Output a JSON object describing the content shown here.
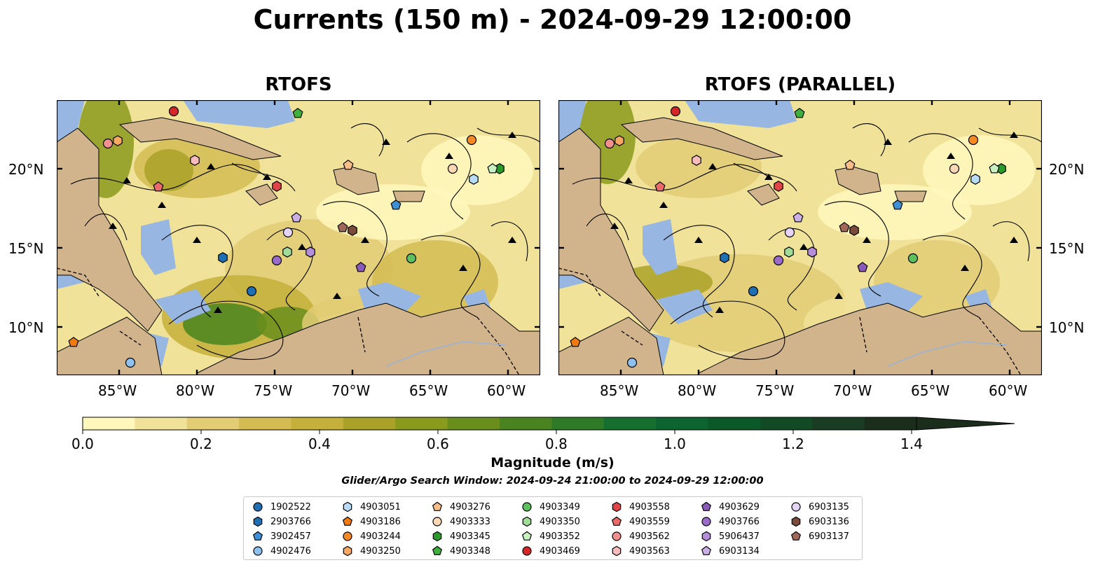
{
  "title": "Currents (150 m) - 2024-09-29 12:00:00",
  "panels": [
    {
      "title": "RTOFS"
    },
    {
      "title": "RTOFS (PARALLEL)"
    }
  ],
  "map": {
    "lon_range": [
      -89,
      -58
    ],
    "lat_range": [
      7,
      24.5
    ],
    "lon_ticks": [
      "85°W",
      "80°W",
      "75°W",
      "70°W",
      "65°W",
      "60°W"
    ],
    "lat_ticks": [
      "20°N",
      "15°N",
      "10°N"
    ],
    "colors": {
      "ocean": "#97b6e1",
      "land": "#d1b48c"
    }
  },
  "colorbar": {
    "label": "Magnitude (m/s)",
    "ticks": [
      "0.0",
      "0.2",
      "0.4",
      "0.6",
      "0.8",
      "1.0",
      "1.2",
      "1.4"
    ],
    "range": [
      0,
      1.6
    ],
    "colors": [
      "#fff7bc",
      "#f0e298",
      "#e2cd74",
      "#d4bc52",
      "#c4b03a",
      "#aaa228",
      "#8a9a1c",
      "#6a8e1c",
      "#4a8420",
      "#2e7a26",
      "#157030",
      "#0c6430",
      "#0b5828",
      "#124a26",
      "#193c22",
      "#1b2e1c"
    ]
  },
  "search_window": "Glider/Argo Search Window: 2024-09-24 21:00:00 to 2024-09-29 12:00:00",
  "legend": [
    {
      "id": "1902522",
      "color": "#1f6fb4",
      "shape": "circle"
    },
    {
      "id": "2903766",
      "color": "#1f6fb4",
      "shape": "hexagon"
    },
    {
      "id": "3902457",
      "color": "#3e8fd6",
      "shape": "pentagon"
    },
    {
      "id": "4902476",
      "color": "#8fc1ee",
      "shape": "circle"
    },
    {
      "id": "4903051",
      "color": "#b8dcf8",
      "shape": "hexagon"
    },
    {
      "id": "4903186",
      "color": "#f07a10",
      "shape": "pentagon"
    },
    {
      "id": "4903244",
      "color": "#f58a25",
      "shape": "circle"
    },
    {
      "id": "4903250",
      "color": "#f8a860",
      "shape": "hexagon"
    },
    {
      "id": "4903276",
      "color": "#f9bd8a",
      "shape": "pentagon"
    },
    {
      "id": "4903333",
      "color": "#fcd7b4",
      "shape": "circle"
    },
    {
      "id": "4903345",
      "color": "#2a9a2a",
      "shape": "hexagon"
    },
    {
      "id": "4903348",
      "color": "#3db03d",
      "shape": "pentagon"
    },
    {
      "id": "4903349",
      "color": "#5cc05c",
      "shape": "circle"
    },
    {
      "id": "4903350",
      "color": "#a0dc98",
      "shape": "hexagon"
    },
    {
      "id": "4903352",
      "color": "#c8f0c0",
      "shape": "pentagon"
    },
    {
      "id": "4903469",
      "color": "#d62728",
      "shape": "circle"
    },
    {
      "id": "4903558",
      "color": "#e04448",
      "shape": "hexagon"
    },
    {
      "id": "4903559",
      "color": "#ea6a6c",
      "shape": "pentagon"
    },
    {
      "id": "4903562",
      "color": "#f29090",
      "shape": "circle"
    },
    {
      "id": "4903563",
      "color": "#f8bcbc",
      "shape": "hexagon"
    },
    {
      "id": "4903629",
      "color": "#8a5ab8",
      "shape": "pentagon"
    },
    {
      "id": "4903766",
      "color": "#9a6cc8",
      "shape": "circle"
    },
    {
      "id": "5906437",
      "color": "#b48ed8",
      "shape": "hexagon"
    },
    {
      "id": "6903134",
      "color": "#cbb0e8",
      "shape": "pentagon"
    },
    {
      "id": "6903135",
      "color": "#e6d4f6",
      "shape": "circle"
    },
    {
      "id": "6903136",
      "color": "#7a4a3c",
      "shape": "hexagon"
    },
    {
      "id": "6903137",
      "color": "#a0685a",
      "shape": "pentagon"
    }
  ]
}
